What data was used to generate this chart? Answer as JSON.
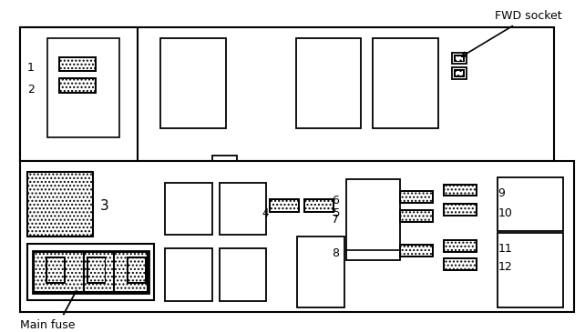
{
  "bg_color": "#ffffff",
  "fwd_label": "FWD socket",
  "main_fuse_label": "Main fuse",
  "fig_width": 6.42,
  "fig_height": 3.65,
  "dpi": 100
}
